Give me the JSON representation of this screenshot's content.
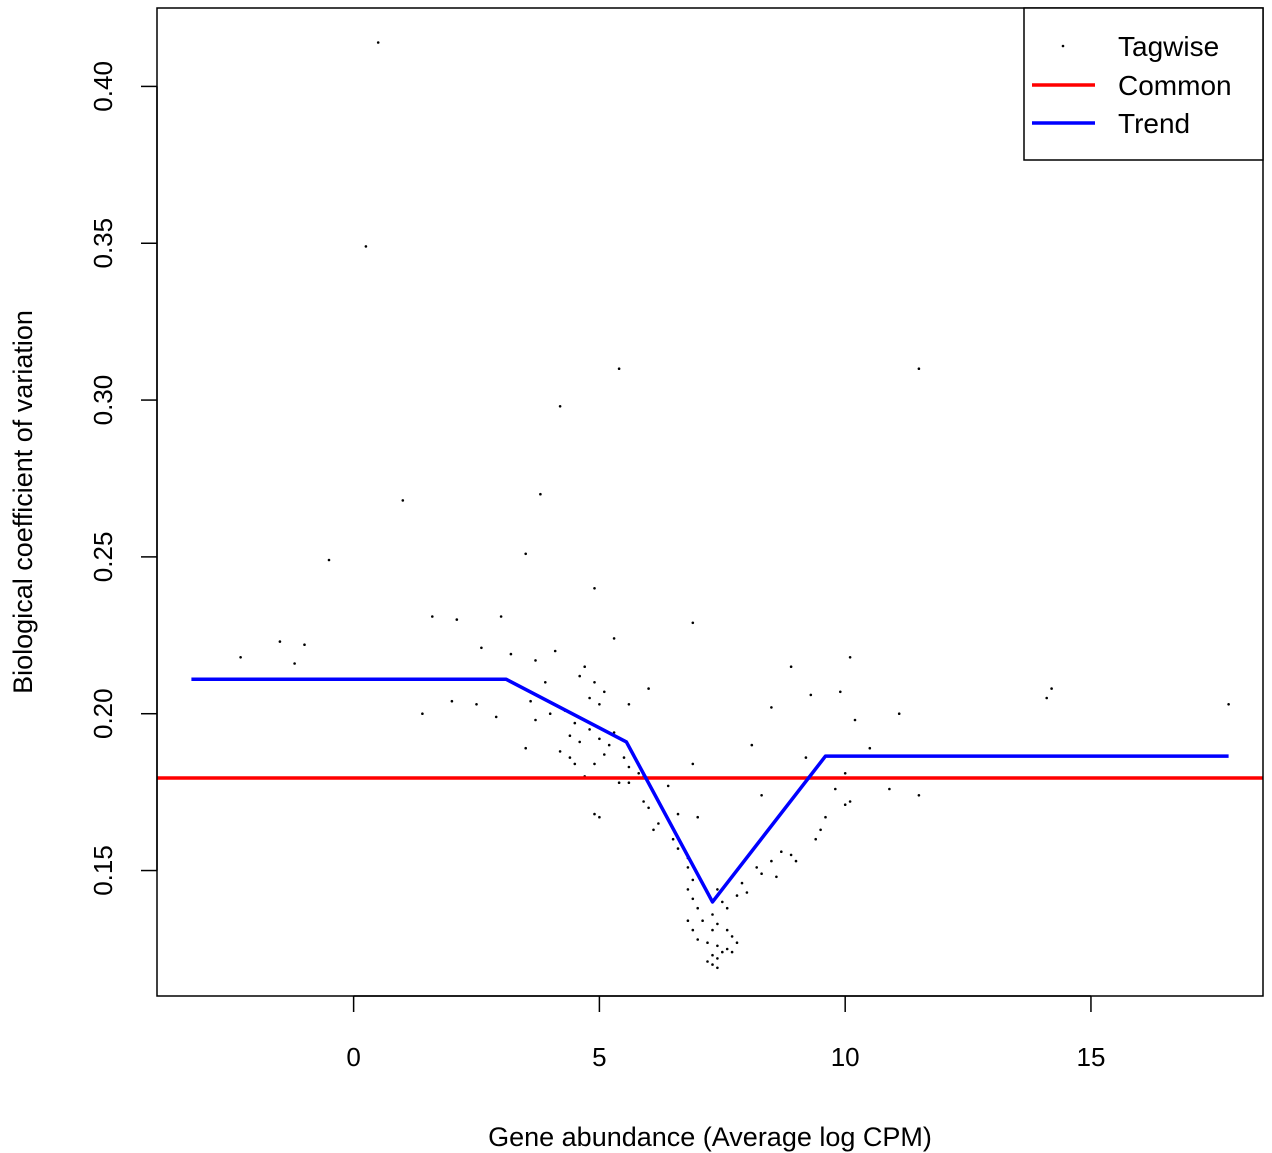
{
  "chart_data": {
    "type": "scatter",
    "xlabel": "Gene abundance (Average log CPM)",
    "ylabel": "Biological coefficient of variation",
    "xlim": [
      -4.0,
      18.5
    ],
    "ylim": [
      0.11,
      0.425
    ],
    "x_ticks": [
      0,
      5,
      10,
      15
    ],
    "x_tick_labels": [
      "0",
      "5",
      "10",
      "15"
    ],
    "y_ticks": [
      0.15,
      0.2,
      0.25,
      0.3,
      0.35,
      0.4
    ],
    "y_tick_labels": [
      "0.15",
      "0.20",
      "0.25",
      "0.30",
      "0.35",
      "0.40"
    ],
    "grid": false,
    "legend_position": "top-right",
    "legend": [
      {
        "label": "Tagwise",
        "kind": "point",
        "color": "#000000"
      },
      {
        "label": "Common",
        "kind": "line",
        "color": "#ff0000"
      },
      {
        "label": "Trend",
        "kind": "line",
        "color": "#0000ff"
      }
    ],
    "series": [
      {
        "name": "Tagwise",
        "kind": "point",
        "color": "#000000",
        "points": [
          [
            0.5,
            0.414
          ],
          [
            0.25,
            0.349
          ],
          [
            5.4,
            0.31
          ],
          [
            11.5,
            0.31
          ],
          [
            4.2,
            0.298
          ],
          [
            3.8,
            0.27
          ],
          [
            1.0,
            0.268
          ],
          [
            3.5,
            0.251
          ],
          [
            -0.5,
            0.249
          ],
          [
            4.9,
            0.24
          ],
          [
            1.6,
            0.231
          ],
          [
            2.1,
            0.23
          ],
          [
            3.0,
            0.231
          ],
          [
            6.9,
            0.229
          ],
          [
            5.3,
            0.224
          ],
          [
            -1.5,
            0.223
          ],
          [
            -1.0,
            0.222
          ],
          [
            2.6,
            0.221
          ],
          [
            4.1,
            0.22
          ],
          [
            -2.3,
            0.218
          ],
          [
            10.1,
            0.218
          ],
          [
            3.2,
            0.219
          ],
          [
            3.7,
            0.217
          ],
          [
            -1.2,
            0.216
          ],
          [
            8.9,
            0.215
          ],
          [
            4.7,
            0.215
          ],
          [
            4.6,
            0.212
          ],
          [
            3.9,
            0.21
          ],
          [
            4.9,
            0.21
          ],
          [
            5.1,
            0.207
          ],
          [
            6.0,
            0.208
          ],
          [
            9.9,
            0.207
          ],
          [
            14.2,
            0.208
          ],
          [
            14.1,
            0.205
          ],
          [
            9.3,
            0.206
          ],
          [
            17.8,
            0.203
          ],
          [
            4.8,
            0.205
          ],
          [
            5.0,
            0.203
          ],
          [
            2.0,
            0.204
          ],
          [
            2.5,
            0.203
          ],
          [
            8.5,
            0.202
          ],
          [
            5.6,
            0.203
          ],
          [
            3.6,
            0.204
          ],
          [
            4.3,
            0.201
          ],
          [
            1.4,
            0.2
          ],
          [
            11.1,
            0.2
          ],
          [
            2.9,
            0.199
          ],
          [
            4.0,
            0.2
          ],
          [
            3.7,
            0.198
          ],
          [
            10.2,
            0.198
          ],
          [
            4.5,
            0.197
          ],
          [
            4.8,
            0.195
          ],
          [
            5.3,
            0.194
          ],
          [
            4.4,
            0.193
          ],
          [
            5.0,
            0.192
          ],
          [
            4.6,
            0.191
          ],
          [
            5.2,
            0.19
          ],
          [
            3.5,
            0.189
          ],
          [
            10.5,
            0.189
          ],
          [
            8.1,
            0.19
          ],
          [
            4.2,
            0.188
          ],
          [
            5.1,
            0.187
          ],
          [
            4.4,
            0.186
          ],
          [
            5.5,
            0.186
          ],
          [
            9.2,
            0.186
          ],
          [
            4.5,
            0.184
          ],
          [
            4.9,
            0.184
          ],
          [
            6.9,
            0.184
          ],
          [
            5.6,
            0.183
          ],
          [
            5.8,
            0.181
          ],
          [
            4.7,
            0.18
          ],
          [
            5.9,
            0.18
          ],
          [
            10.0,
            0.181
          ],
          [
            5.4,
            0.178
          ],
          [
            5.6,
            0.178
          ],
          [
            6.4,
            0.177
          ],
          [
            10.9,
            0.176
          ],
          [
            11.5,
            0.174
          ],
          [
            8.3,
            0.174
          ],
          [
            9.8,
            0.176
          ],
          [
            10.1,
            0.172
          ],
          [
            10.0,
            0.171
          ],
          [
            5.9,
            0.172
          ],
          [
            6.0,
            0.17
          ],
          [
            6.6,
            0.168
          ],
          [
            7.0,
            0.167
          ],
          [
            4.9,
            0.168
          ],
          [
            5.0,
            0.167
          ],
          [
            9.6,
            0.167
          ],
          [
            6.2,
            0.165
          ],
          [
            6.1,
            0.163
          ],
          [
            9.5,
            0.163
          ],
          [
            6.5,
            0.16
          ],
          [
            9.4,
            0.16
          ],
          [
            6.6,
            0.157
          ],
          [
            8.7,
            0.156
          ],
          [
            8.9,
            0.155
          ],
          [
            6.8,
            0.154
          ],
          [
            8.5,
            0.153
          ],
          [
            9.0,
            0.153
          ],
          [
            6.8,
            0.151
          ],
          [
            8.2,
            0.151
          ],
          [
            8.3,
            0.149
          ],
          [
            6.9,
            0.147
          ],
          [
            8.6,
            0.148
          ],
          [
            7.9,
            0.146
          ],
          [
            6.8,
            0.144
          ],
          [
            8.0,
            0.143
          ],
          [
            7.8,
            0.142
          ],
          [
            6.9,
            0.141
          ],
          [
            7.4,
            0.144
          ],
          [
            7.5,
            0.14
          ],
          [
            7.6,
            0.138
          ],
          [
            7.0,
            0.138
          ],
          [
            7.3,
            0.136
          ],
          [
            7.1,
            0.134
          ],
          [
            7.4,
            0.133
          ],
          [
            6.8,
            0.134
          ],
          [
            7.3,
            0.131
          ],
          [
            7.6,
            0.131
          ],
          [
            6.9,
            0.131
          ],
          [
            7.0,
            0.128
          ],
          [
            7.2,
            0.127
          ],
          [
            7.4,
            0.126
          ],
          [
            7.6,
            0.125
          ],
          [
            7.5,
            0.124
          ],
          [
            7.7,
            0.124
          ],
          [
            7.3,
            0.123
          ],
          [
            7.4,
            0.122
          ],
          [
            7.2,
            0.121
          ],
          [
            7.3,
            0.12
          ],
          [
            7.4,
            0.119
          ],
          [
            7.8,
            0.127
          ],
          [
            7.7,
            0.129
          ]
        ]
      },
      {
        "name": "Common",
        "kind": "hline",
        "color": "#ff0000",
        "y": 0.1795
      },
      {
        "name": "Trend",
        "kind": "line",
        "color": "#0000ff",
        "points": [
          [
            -3.3,
            0.211
          ],
          [
            3.1,
            0.211
          ],
          [
            5.55,
            0.191
          ],
          [
            7.3,
            0.14
          ],
          [
            9.6,
            0.1865
          ],
          [
            17.8,
            0.1865
          ]
        ]
      }
    ]
  }
}
